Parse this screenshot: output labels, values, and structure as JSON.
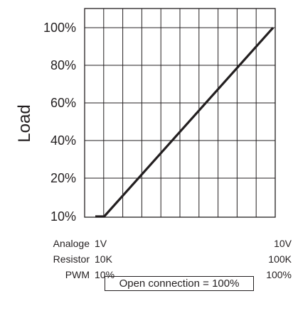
{
  "chart_data": {
    "type": "line",
    "ylabel": "Load",
    "xlabel": "",
    "title": "",
    "y_ticks": [
      "10%",
      "20%",
      "40%",
      "60%",
      "80%",
      "100%"
    ],
    "y_tick_values": [
      10,
      20,
      40,
      60,
      80,
      100
    ],
    "series": [
      {
        "points": [
          [
            0,
            10
          ],
          [
            0.5,
            10
          ],
          [
            10,
            100
          ]
        ]
      }
    ],
    "x_columns": 10,
    "ylim": [
      10,
      100
    ],
    "grid": true,
    "x_scales": [
      {
        "label": "Analoge",
        "min": "1V",
        "max": "10V"
      },
      {
        "label": "Resistor",
        "min": "10K",
        "max": "100K"
      },
      {
        "label": "PWM",
        "min": "10%",
        "max": "100%"
      }
    ],
    "note": "Open connection = 100%"
  }
}
